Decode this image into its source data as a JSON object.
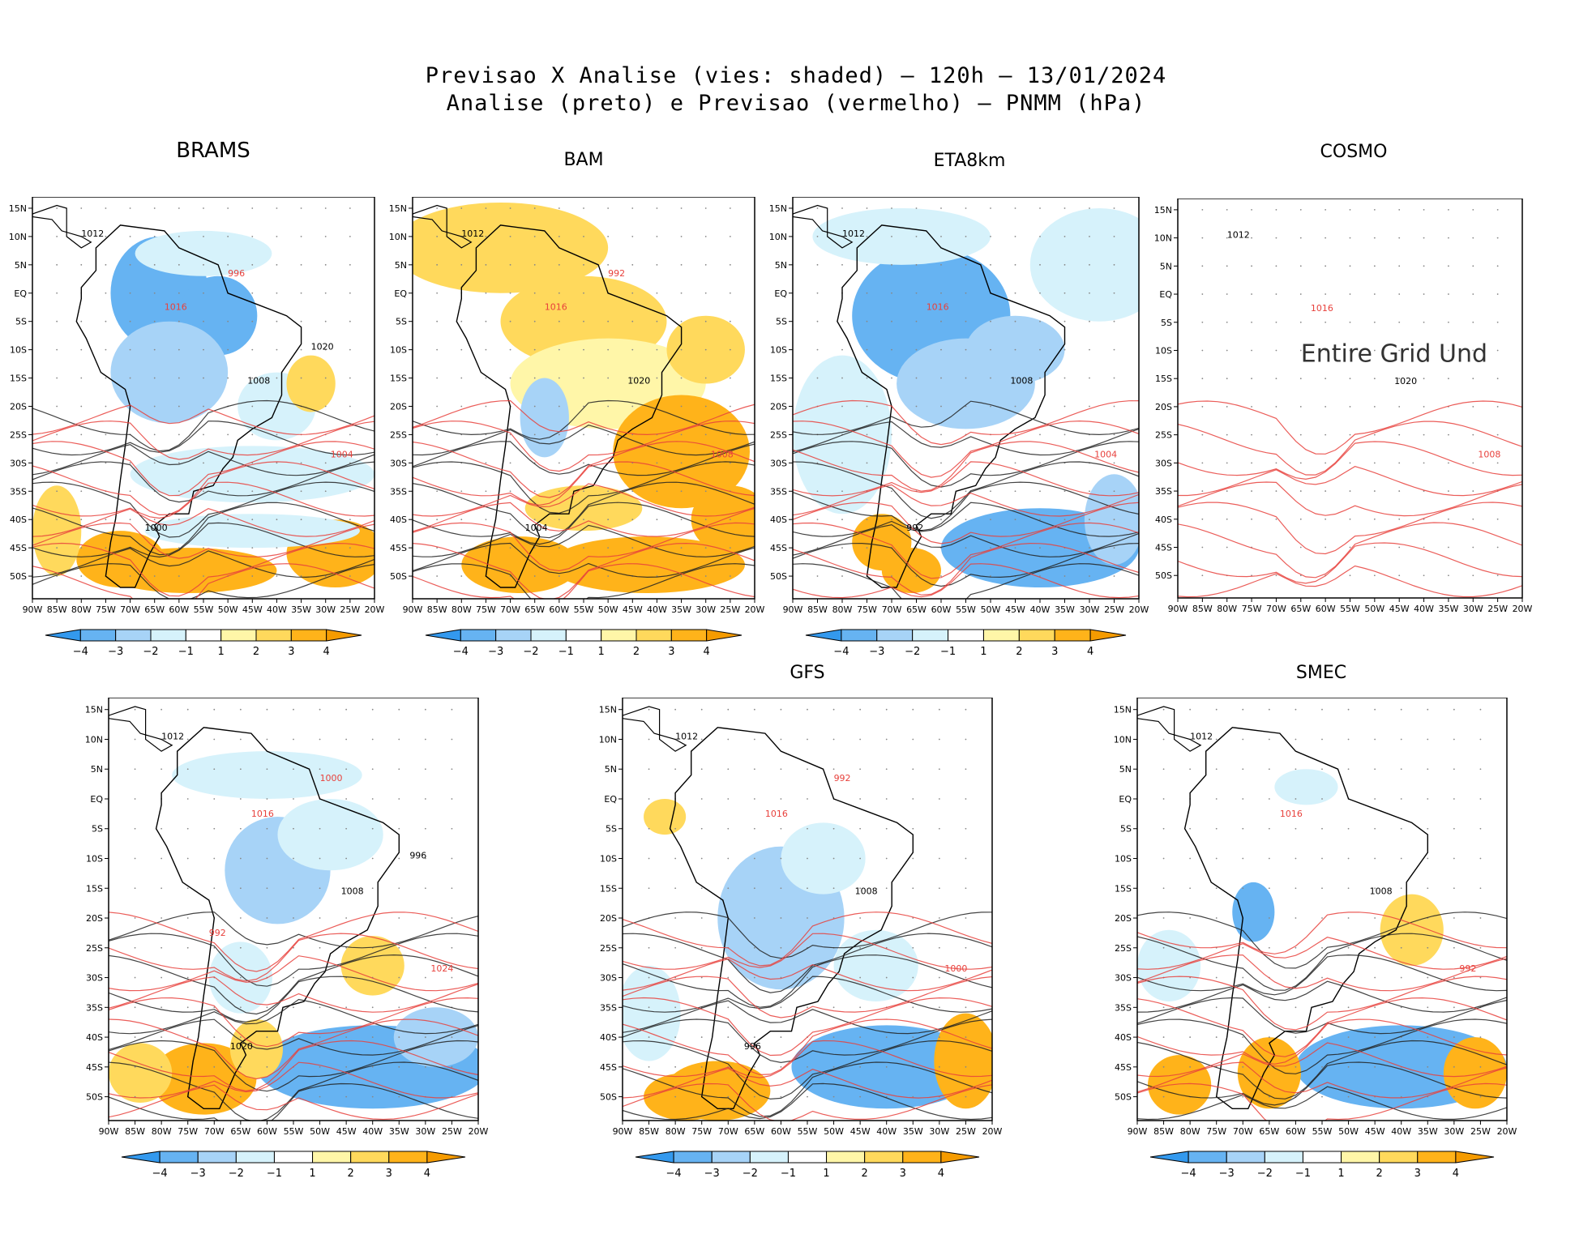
{
  "title": {
    "line1": "Previsao X Analise (vies: shaded) – 120h – 13/01/2024",
    "line2": "Analise (preto) e Previsao (vermelho) – PNMM (hPa)"
  },
  "colors": {
    "analysis_contour": "#222222",
    "forecast_contour": "#e8413c",
    "bias_levels": [
      "#3399ee",
      "#66b3f2",
      "#a7d3f7",
      "#d6f2fb",
      "#ffffff",
      "#fff6a8",
      "#ffd95c",
      "#ffb31a",
      "#f59b00"
    ]
  },
  "chart_data": [
    {
      "type": "heatmap",
      "title": "BRAMS",
      "xlabel": "",
      "ylabel": "",
      "x_ticks": [
        "90W",
        "85W",
        "80W",
        "75W",
        "70W",
        "65W",
        "60W",
        "55W",
        "50W",
        "45W",
        "40W",
        "35W",
        "30W",
        "25W",
        "20W"
      ],
      "y_ticks": [
        "15N",
        "10N",
        "5N",
        "EQ",
        "5S",
        "10S",
        "15S",
        "20S",
        "25S",
        "30S",
        "35S",
        "40S",
        "45S",
        "50S"
      ],
      "colorbar_ticks": [
        "−4",
        "−3",
        "−2",
        "−1",
        "1",
        "2",
        "3",
        "4"
      ],
      "contour_labels": [
        "1012",
        "1016",
        "1008",
        "1004",
        "1000",
        "996",
        "1020"
      ],
      "bias_regions": [
        {
          "region": "interior South America",
          "bias": -3
        },
        {
          "region": "southern ocean 45S",
          "bias": 3
        },
        {
          "region": "far south-east Pacific",
          "bias": 3
        }
      ]
    },
    {
      "type": "heatmap",
      "title": "BAM",
      "xlabel": "",
      "ylabel": "",
      "x_ticks": [
        "90W",
        "85W",
        "80W",
        "75W",
        "70W",
        "65W",
        "60W",
        "55W",
        "50W",
        "45W",
        "40W",
        "35W",
        "30W",
        "25W",
        "20W"
      ],
      "y_ticks": [
        "15N",
        "10N",
        "5N",
        "EQ",
        "5S",
        "10S",
        "15S",
        "20S",
        "25S",
        "30S",
        "35S",
        "40S",
        "45S",
        "50S"
      ],
      "colorbar_ticks": [
        "−4",
        "−3",
        "−2",
        "−1",
        "1",
        "2",
        "3",
        "4"
      ],
      "contour_labels": [
        "1012",
        "1016",
        "1020",
        "1008",
        "1004",
        "992"
      ],
      "bias_regions": [
        {
          "region": "northern & central continent",
          "bias": 2
        },
        {
          "region": "south Atlantic 25S-35S",
          "bias": 3
        },
        {
          "region": "southern ocean 45S",
          "bias": 3
        }
      ]
    },
    {
      "type": "heatmap",
      "title": "ETA8km",
      "xlabel": "",
      "ylabel": "",
      "x_ticks": [
        "90W",
        "85W",
        "80W",
        "75W",
        "70W",
        "65W",
        "60W",
        "55W",
        "50W",
        "45W",
        "40W",
        "35W",
        "30W",
        "25W",
        "20W"
      ],
      "y_ticks": [
        "15N",
        "10N",
        "5N",
        "EQ",
        "5S",
        "10S",
        "15S",
        "20S",
        "25S",
        "30S",
        "35S",
        "40S",
        "45S",
        "50S"
      ],
      "colorbar_ticks": [
        "−4",
        "−3",
        "−2",
        "−1",
        "1",
        "2",
        "3",
        "4"
      ],
      "contour_labels": [
        "1012",
        "1016",
        "1008",
        "1004",
        "992"
      ],
      "bias_regions": [
        {
          "region": "Brazil interior",
          "bias": -3
        },
        {
          "region": "south Atlantic 45S",
          "bias": -3
        },
        {
          "region": "Patagonia",
          "bias": 3
        }
      ]
    },
    {
      "type": "heatmap",
      "title": "COSMO",
      "xlabel": "",
      "ylabel": "",
      "x_ticks": [
        "90W",
        "85W",
        "80W",
        "75W",
        "70W",
        "65W",
        "60W",
        "55W",
        "50W",
        "45W",
        "40W",
        "35W",
        "30W",
        "25W",
        "20W"
      ],
      "y_ticks": [
        "15N",
        "10N",
        "5N",
        "EQ",
        "5S",
        "10S",
        "15S",
        "20S",
        "25S",
        "30S",
        "35S",
        "40S",
        "45S",
        "50S"
      ],
      "annotation": "Entire Grid Und",
      "contour_labels": [
        "1012",
        "1016",
        "1020",
        "1008"
      ],
      "bias_regions": []
    },
    {
      "type": "heatmap",
      "title": "",
      "xlabel": "",
      "ylabel": "",
      "x_ticks": [
        "90W",
        "85W",
        "80W",
        "75W",
        "70W",
        "65W",
        "60W",
        "55W",
        "50W",
        "45W",
        "40W",
        "35W",
        "30W",
        "25W",
        "20W"
      ],
      "y_ticks": [
        "15N",
        "10N",
        "5N",
        "EQ",
        "5S",
        "10S",
        "15S",
        "20S",
        "25S",
        "30S",
        "35S",
        "40S",
        "45S",
        "50S"
      ],
      "colorbar_ticks": [
        "−4",
        "−3",
        "−2",
        "−1",
        "1",
        "2",
        "3",
        "4"
      ],
      "contour_labels": [
        "1012",
        "1016",
        "1008",
        "1024",
        "1020",
        "1000",
        "996",
        "992"
      ],
      "bias_regions": [
        {
          "region": "central continent",
          "bias": -2
        },
        {
          "region": "south Atlantic 45S",
          "bias": -3
        },
        {
          "region": "southern Pacific",
          "bias": 3
        }
      ]
    },
    {
      "type": "heatmap",
      "title": "GFS",
      "xlabel": "",
      "ylabel": "",
      "x_ticks": [
        "90W",
        "85W",
        "80W",
        "75W",
        "70W",
        "65W",
        "60W",
        "55W",
        "50W",
        "45W",
        "40W",
        "35W",
        "30W",
        "25W",
        "20W"
      ],
      "y_ticks": [
        "15N",
        "10N",
        "5N",
        "EQ",
        "5S",
        "10S",
        "15S",
        "20S",
        "25S",
        "30S",
        "35S",
        "40S",
        "45S",
        "50S"
      ],
      "colorbar_ticks": [
        "−4",
        "−3",
        "−2",
        "−1",
        "1",
        "2",
        "3",
        "4"
      ],
      "contour_labels": [
        "1012",
        "1016",
        "1008",
        "1000",
        "996",
        "992"
      ],
      "bias_regions": [
        {
          "region": "central continent",
          "bias": -2
        },
        {
          "region": "south Atlantic 45S",
          "bias": -3
        },
        {
          "region": "far south",
          "bias": 3
        }
      ]
    },
    {
      "type": "heatmap",
      "title": "SMEC",
      "xlabel": "",
      "ylabel": "",
      "x_ticks": [
        "90W",
        "85W",
        "80W",
        "75W",
        "70W",
        "65W",
        "60W",
        "55W",
        "50W",
        "45W",
        "40W",
        "35W",
        "30W",
        "25W",
        "20W"
      ],
      "y_ticks": [
        "15N",
        "10N",
        "5N",
        "EQ",
        "5S",
        "10S",
        "15S",
        "20S",
        "25S",
        "30S",
        "35S",
        "40S",
        "45S",
        "50S"
      ],
      "colorbar_ticks": [
        "−4",
        "−3",
        "−2",
        "−1",
        "1",
        "2",
        "3",
        "4"
      ],
      "contour_labels": [
        "1012",
        "1016",
        "1008",
        "992"
      ],
      "bias_regions": [
        {
          "region": "south Atlantic 45S",
          "bias": -3
        },
        {
          "region": "south Atlantic 30S",
          "bias": 2
        },
        {
          "region": "southern Pacific",
          "bias": 3
        }
      ]
    }
  ]
}
